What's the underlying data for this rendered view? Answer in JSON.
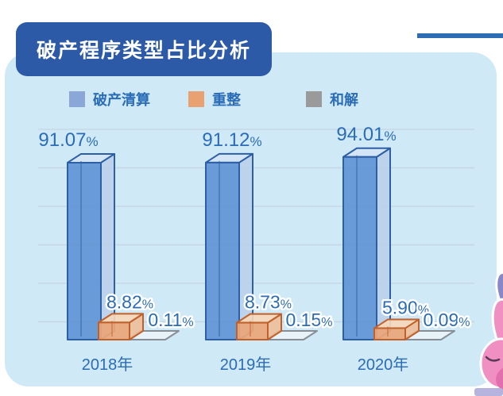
{
  "header": {
    "title": "破产程序类型占比分析",
    "title_bg": "#2d5aa7",
    "title_text_color": "#ffffff"
  },
  "accent_line_color": "#2e6cb4",
  "panel_color": "#cfe9f7",
  "legend": {
    "items": [
      {
        "label": "破产清算",
        "color": "#8aa7d7"
      },
      {
        "label": "重整",
        "color": "#eaa172"
      },
      {
        "label": "和解",
        "color": "#9a9a9a"
      }
    ],
    "text_color": "#2b6cb7"
  },
  "chart_data": {
    "type": "bar",
    "style": "3d-glass-boxes",
    "title": "破产程序类型占比分析",
    "categories": [
      "2018年",
      "2019年",
      "2020年"
    ],
    "category_slugs": [
      "2018",
      "2019",
      "2020"
    ],
    "series": [
      {
        "name": "破产清算",
        "slug": "liquidation",
        "values": [
          91.07,
          91.12,
          94.01
        ],
        "face_color": "#6095d4",
        "edge_color": "#2c5fa5",
        "side_color": "#b9cfe9",
        "top_color": "#d5e4f4"
      },
      {
        "name": "重整",
        "slug": "reorganization",
        "values": [
          8.82,
          8.73,
          5.9
        ],
        "face_color": "#eba679",
        "edge_color": "#c0602a",
        "side_color": "#f0bd96",
        "top_color": "#f6d7bb"
      },
      {
        "name": "和解",
        "slug": "settlement",
        "values": [
          0.11,
          0.15,
          0.09
        ],
        "face_color": "#eaf2f8",
        "edge_color": "#878e96",
        "side_color": "#eaf2f8",
        "top_color": "#eaf2f8"
      }
    ],
    "value_suffix": "%",
    "value_decimals": 2,
    "ylim": [
      0,
      100
    ],
    "grid": true,
    "legend_position": "top",
    "label_color": "#2b6cb7"
  },
  "decor": {
    "mascot": "pink-character",
    "mascot_colors": {
      "body": "#ef8fc2",
      "shadow": "#e16fae",
      "ear": "#8a87c8",
      "mouth": "#5a3a57",
      "base": "#b6b3df"
    }
  }
}
